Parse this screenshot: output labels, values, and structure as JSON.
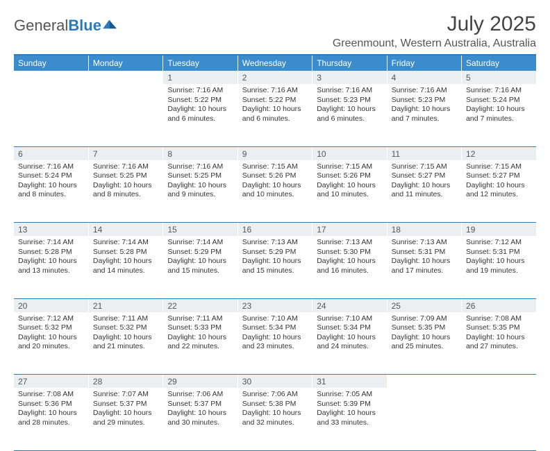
{
  "logo": {
    "text1": "General",
    "text2": "Blue"
  },
  "title": "July 2025",
  "location": "Greenmount, Western Australia, Australia",
  "colors": {
    "header_bg": "#3b8ccc",
    "header_text": "#ffffff",
    "border": "#2a7ac0",
    "daynum_bg": "#eceff1",
    "text": "#333333",
    "title_text": "#444444"
  },
  "weekdays": [
    "Sunday",
    "Monday",
    "Tuesday",
    "Wednesday",
    "Thursday",
    "Friday",
    "Saturday"
  ],
  "weeks": [
    [
      null,
      null,
      {
        "n": "1",
        "sr": "7:16 AM",
        "ss": "5:22 PM",
        "dl": "10 hours and 6 minutes."
      },
      {
        "n": "2",
        "sr": "7:16 AM",
        "ss": "5:22 PM",
        "dl": "10 hours and 6 minutes."
      },
      {
        "n": "3",
        "sr": "7:16 AM",
        "ss": "5:23 PM",
        "dl": "10 hours and 6 minutes."
      },
      {
        "n": "4",
        "sr": "7:16 AM",
        "ss": "5:23 PM",
        "dl": "10 hours and 7 minutes."
      },
      {
        "n": "5",
        "sr": "7:16 AM",
        "ss": "5:24 PM",
        "dl": "10 hours and 7 minutes."
      }
    ],
    [
      {
        "n": "6",
        "sr": "7:16 AM",
        "ss": "5:24 PM",
        "dl": "10 hours and 8 minutes."
      },
      {
        "n": "7",
        "sr": "7:16 AM",
        "ss": "5:25 PM",
        "dl": "10 hours and 8 minutes."
      },
      {
        "n": "8",
        "sr": "7:16 AM",
        "ss": "5:25 PM",
        "dl": "10 hours and 9 minutes."
      },
      {
        "n": "9",
        "sr": "7:15 AM",
        "ss": "5:26 PM",
        "dl": "10 hours and 10 minutes."
      },
      {
        "n": "10",
        "sr": "7:15 AM",
        "ss": "5:26 PM",
        "dl": "10 hours and 10 minutes."
      },
      {
        "n": "11",
        "sr": "7:15 AM",
        "ss": "5:27 PM",
        "dl": "10 hours and 11 minutes."
      },
      {
        "n": "12",
        "sr": "7:15 AM",
        "ss": "5:27 PM",
        "dl": "10 hours and 12 minutes."
      }
    ],
    [
      {
        "n": "13",
        "sr": "7:14 AM",
        "ss": "5:28 PM",
        "dl": "10 hours and 13 minutes."
      },
      {
        "n": "14",
        "sr": "7:14 AM",
        "ss": "5:28 PM",
        "dl": "10 hours and 14 minutes."
      },
      {
        "n": "15",
        "sr": "7:14 AM",
        "ss": "5:29 PM",
        "dl": "10 hours and 15 minutes."
      },
      {
        "n": "16",
        "sr": "7:13 AM",
        "ss": "5:29 PM",
        "dl": "10 hours and 15 minutes."
      },
      {
        "n": "17",
        "sr": "7:13 AM",
        "ss": "5:30 PM",
        "dl": "10 hours and 16 minutes."
      },
      {
        "n": "18",
        "sr": "7:13 AM",
        "ss": "5:31 PM",
        "dl": "10 hours and 17 minutes."
      },
      {
        "n": "19",
        "sr": "7:12 AM",
        "ss": "5:31 PM",
        "dl": "10 hours and 19 minutes."
      }
    ],
    [
      {
        "n": "20",
        "sr": "7:12 AM",
        "ss": "5:32 PM",
        "dl": "10 hours and 20 minutes."
      },
      {
        "n": "21",
        "sr": "7:11 AM",
        "ss": "5:32 PM",
        "dl": "10 hours and 21 minutes."
      },
      {
        "n": "22",
        "sr": "7:11 AM",
        "ss": "5:33 PM",
        "dl": "10 hours and 22 minutes."
      },
      {
        "n": "23",
        "sr": "7:10 AM",
        "ss": "5:34 PM",
        "dl": "10 hours and 23 minutes."
      },
      {
        "n": "24",
        "sr": "7:10 AM",
        "ss": "5:34 PM",
        "dl": "10 hours and 24 minutes."
      },
      {
        "n": "25",
        "sr": "7:09 AM",
        "ss": "5:35 PM",
        "dl": "10 hours and 25 minutes."
      },
      {
        "n": "26",
        "sr": "7:08 AM",
        "ss": "5:35 PM",
        "dl": "10 hours and 27 minutes."
      }
    ],
    [
      {
        "n": "27",
        "sr": "7:08 AM",
        "ss": "5:36 PM",
        "dl": "10 hours and 28 minutes."
      },
      {
        "n": "28",
        "sr": "7:07 AM",
        "ss": "5:37 PM",
        "dl": "10 hours and 29 minutes."
      },
      {
        "n": "29",
        "sr": "7:06 AM",
        "ss": "5:37 PM",
        "dl": "10 hours and 30 minutes."
      },
      {
        "n": "30",
        "sr": "7:06 AM",
        "ss": "5:38 PM",
        "dl": "10 hours and 32 minutes."
      },
      {
        "n": "31",
        "sr": "7:05 AM",
        "ss": "5:39 PM",
        "dl": "10 hours and 33 minutes."
      },
      null,
      null
    ]
  ],
  "labels": {
    "sunrise": "Sunrise:",
    "sunset": "Sunset:",
    "daylight": "Daylight:"
  }
}
